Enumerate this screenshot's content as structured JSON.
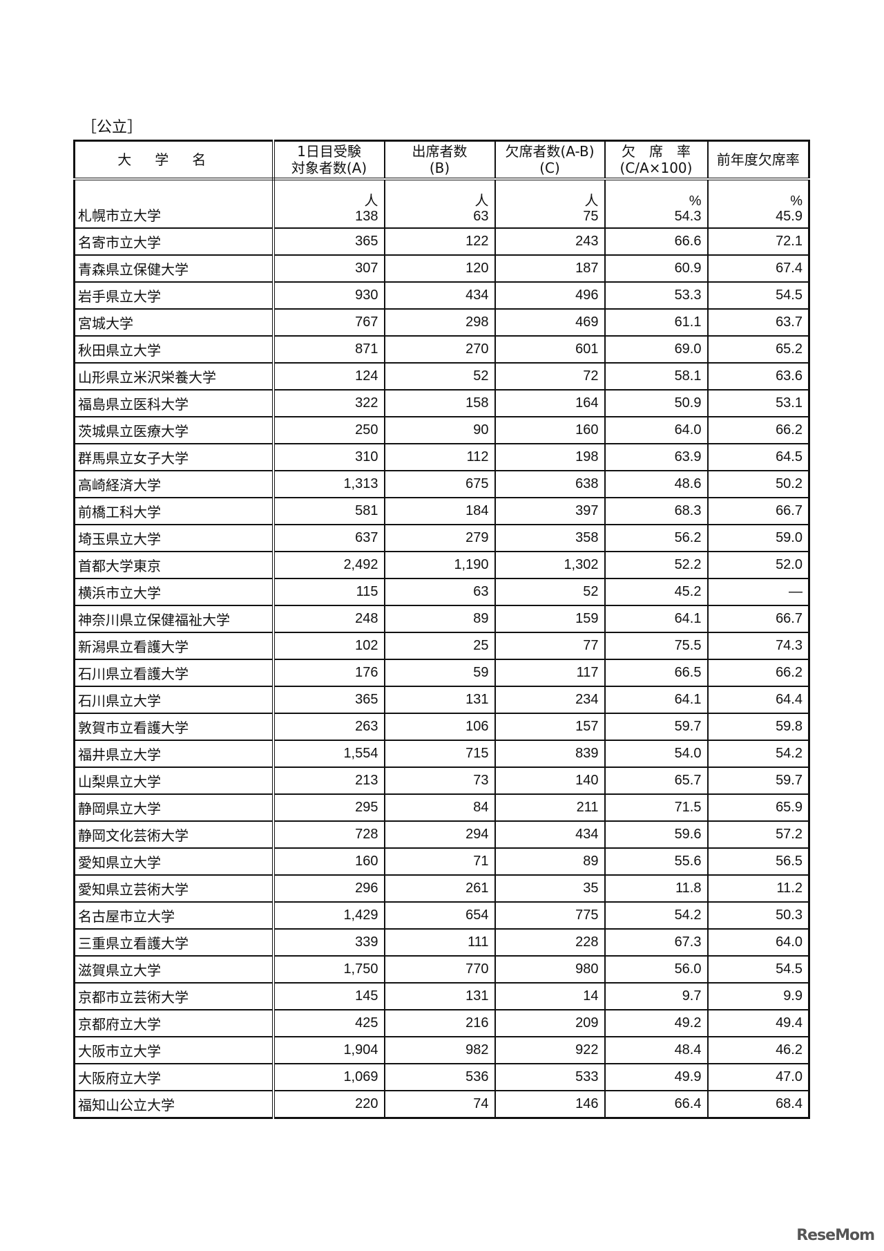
{
  "section_label": "［公立］",
  "headers": [
    "大学名",
    "1日目受験\n対象者数(A)",
    "出席者数\n(B)",
    "欠席者数(A-B)\n(C)",
    "欠　席　率\n(C/A×100)",
    "前年度欠席率"
  ],
  "units": [
    "人",
    "人",
    "人",
    "%",
    "%"
  ],
  "rows": [
    [
      "札幌市立大学",
      "138",
      "63",
      "75",
      "54.3",
      "45.9"
    ],
    [
      "名寄市立大学",
      "365",
      "122",
      "243",
      "66.6",
      "72.1"
    ],
    [
      "青森県立保健大学",
      "307",
      "120",
      "187",
      "60.9",
      "67.4"
    ],
    [
      "岩手県立大学",
      "930",
      "434",
      "496",
      "53.3",
      "54.5"
    ],
    [
      "宮城大学",
      "767",
      "298",
      "469",
      "61.1",
      "63.7"
    ],
    [
      "秋田県立大学",
      "871",
      "270",
      "601",
      "69.0",
      "65.2"
    ],
    [
      "山形県立米沢栄養大学",
      "124",
      "52",
      "72",
      "58.1",
      "63.6"
    ],
    [
      "福島県立医科大学",
      "322",
      "158",
      "164",
      "50.9",
      "53.1"
    ],
    [
      "茨城県立医療大学",
      "250",
      "90",
      "160",
      "64.0",
      "66.2"
    ],
    [
      "群馬県立女子大学",
      "310",
      "112",
      "198",
      "63.9",
      "64.5"
    ],
    [
      "高崎経済大学",
      "1,313",
      "675",
      "638",
      "48.6",
      "50.2"
    ],
    [
      "前橋工科大学",
      "581",
      "184",
      "397",
      "68.3",
      "66.7"
    ],
    [
      "埼玉県立大学",
      "637",
      "279",
      "358",
      "56.2",
      "59.0"
    ],
    [
      "首都大学東京",
      "2,492",
      "1,190",
      "1,302",
      "52.2",
      "52.0"
    ],
    [
      "横浜市立大学",
      "115",
      "63",
      "52",
      "45.2",
      "―"
    ],
    [
      "神奈川県立保健福祉大学",
      "248",
      "89",
      "159",
      "64.1",
      "66.7"
    ],
    [
      "新潟県立看護大学",
      "102",
      "25",
      "77",
      "75.5",
      "74.3"
    ],
    [
      "石川県立看護大学",
      "176",
      "59",
      "117",
      "66.5",
      "66.2"
    ],
    [
      "石川県立大学",
      "365",
      "131",
      "234",
      "64.1",
      "64.4"
    ],
    [
      "敦賀市立看護大学",
      "263",
      "106",
      "157",
      "59.7",
      "59.8"
    ],
    [
      "福井県立大学",
      "1,554",
      "715",
      "839",
      "54.0",
      "54.2"
    ],
    [
      "山梨県立大学",
      "213",
      "73",
      "140",
      "65.7",
      "59.7"
    ],
    [
      "静岡県立大学",
      "295",
      "84",
      "211",
      "71.5",
      "65.9"
    ],
    [
      "静岡文化芸術大学",
      "728",
      "294",
      "434",
      "59.6",
      "57.2"
    ],
    [
      "愛知県立大学",
      "160",
      "71",
      "89",
      "55.6",
      "56.5"
    ],
    [
      "愛知県立芸術大学",
      "296",
      "261",
      "35",
      "11.8",
      "11.2"
    ],
    [
      "名古屋市立大学",
      "1,429",
      "654",
      "775",
      "54.2",
      "50.3"
    ],
    [
      "三重県立看護大学",
      "339",
      "111",
      "228",
      "67.3",
      "64.0"
    ],
    [
      "滋賀県立大学",
      "1,750",
      "770",
      "980",
      "56.0",
      "54.5"
    ],
    [
      "京都市立芸術大学",
      "145",
      "131",
      "14",
      "9.7",
      "9.9"
    ],
    [
      "京都府立大学",
      "425",
      "216",
      "209",
      "49.2",
      "49.4"
    ],
    [
      "大阪市立大学",
      "1,904",
      "982",
      "922",
      "48.4",
      "46.2"
    ],
    [
      "大阪府立大学",
      "1,069",
      "536",
      "533",
      "49.9",
      "47.0"
    ],
    [
      "福知山公立大学",
      "220",
      "74",
      "146",
      "66.4",
      "68.4"
    ]
  ],
  "watermark": "ReseMom"
}
